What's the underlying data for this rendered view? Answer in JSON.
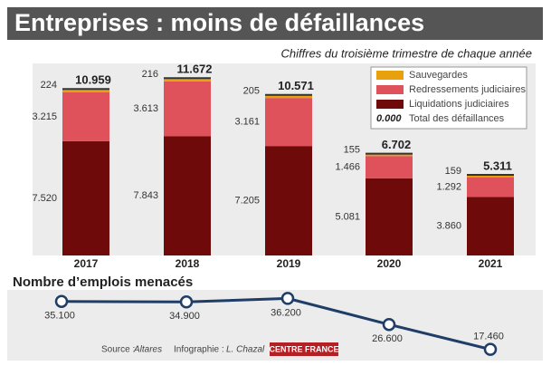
{
  "chart_data": [
    {
      "type": "stacked_bar",
      "title": "Entreprises : moins de défaillances",
      "subtitle": "Chiffres du troisième trimestre de chaque année",
      "categories": [
        "2017",
        "2018",
        "2019",
        "2020",
        "2021"
      ],
      "series": [
        {
          "name": "Liquidations judiciaires",
          "color": "#6e0a0a",
          "values": [
            7520,
            7843,
            7205,
            5081,
            3860
          ],
          "value_labels": [
            "7.520",
            "7.843",
            "7.205",
            "5.081",
            "3.860"
          ]
        },
        {
          "name": "Redressements judiciaires",
          "color": "#e0525b",
          "values": [
            3215,
            3613,
            3161,
            1466,
            1292
          ],
          "value_labels": [
            "3.215",
            "3.613",
            "3.161",
            "1.466",
            "1.292"
          ]
        },
        {
          "name": "Sauvegardes",
          "color": "#e8a10c",
          "values": [
            224,
            216,
            205,
            155,
            159
          ],
          "value_labels": [
            "224",
            "216",
            "205",
            "155",
            "159"
          ]
        }
      ],
      "totals": {
        "name": "Total des défaillances",
        "sample": "0.000",
        "values": [
          10959,
          11672,
          10571,
          6702,
          5311
        ],
        "value_labels": [
          "10.959",
          "11.672",
          "10.571",
          "6.702",
          "5.311"
        ]
      },
      "ylim": [
        0,
        13000
      ],
      "legend": "top-right"
    },
    {
      "type": "line",
      "title": "Nombre d’emplois menacés",
      "color": "#1f3d66",
      "values": [
        35100,
        34900,
        36200,
        26600,
        17460
      ],
      "value_labels": [
        "35.100",
        "34.900",
        "36.200",
        "26.600",
        "17.460"
      ],
      "ylim": [
        15000,
        40000
      ],
      "source": "Source :",
      "source_name": "Altares",
      "credit": "Infographie :",
      "credit_name": "L. Chazal",
      "brand": "CENTRE FRANCE"
    }
  ]
}
